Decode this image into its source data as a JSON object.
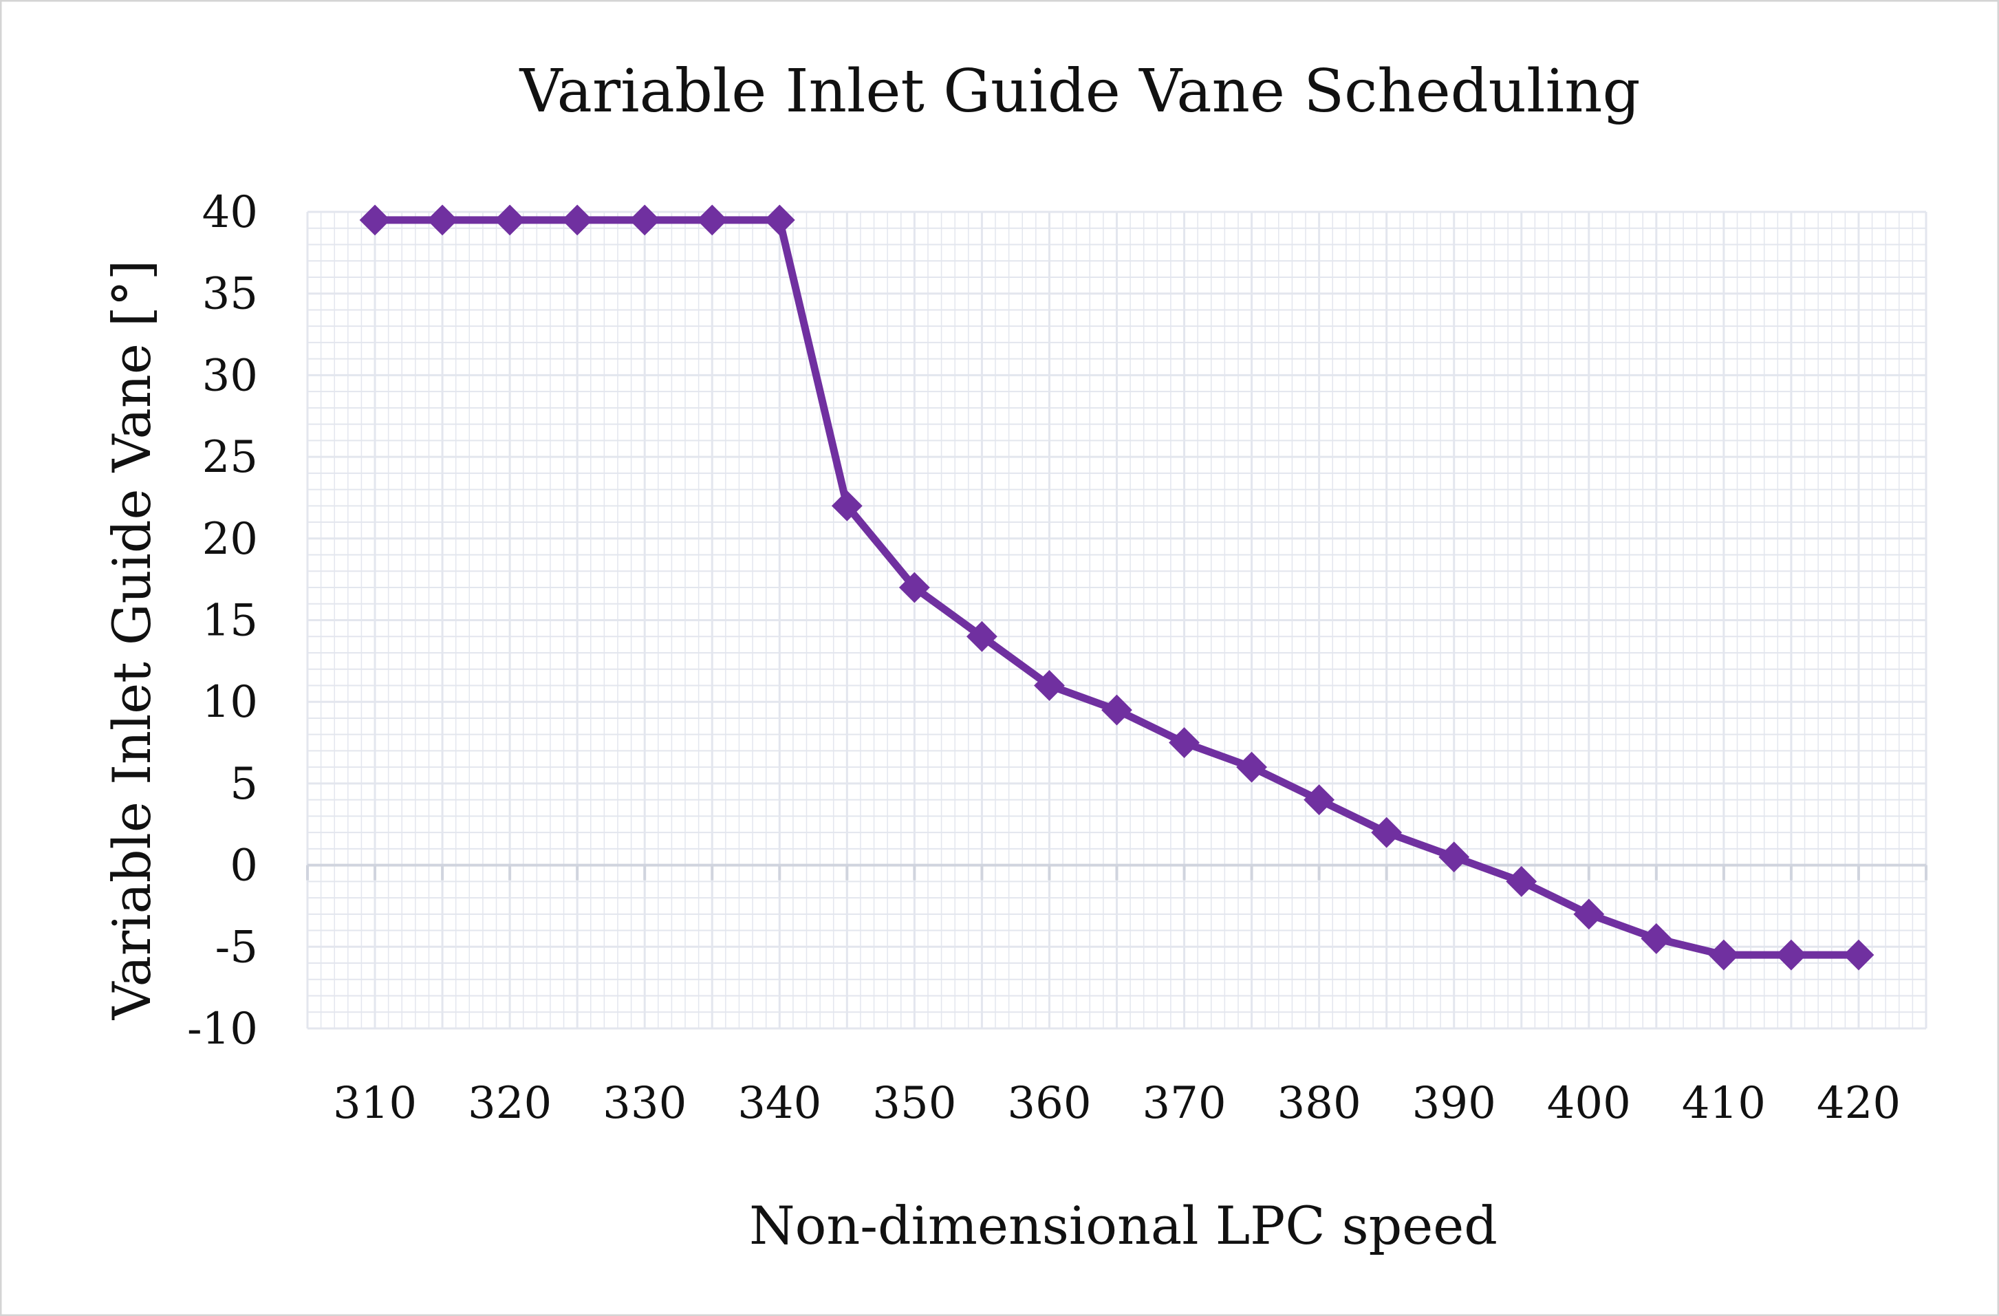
{
  "chart_data": {
    "type": "line",
    "title": "Variable Inlet Guide Vane Scheduling",
    "xlabel": "Non-dimensional LPC speed",
    "ylabel": "Variable Inlet Guide Vane [°]",
    "xlim": [
      305,
      425
    ],
    "ylim": [
      -10,
      40
    ],
    "x_ticks": [
      310,
      320,
      330,
      340,
      350,
      360,
      370,
      380,
      390,
      400,
      410,
      420
    ],
    "y_ticks": [
      40,
      35,
      30,
      25,
      20,
      15,
      10,
      5,
      0,
      -5,
      -10
    ],
    "grid": true,
    "legend": "none",
    "line_color": "#7030A0",
    "gridline_color": "#e3e6ee",
    "series": [
      {
        "x": [
          310,
          315,
          320,
          325,
          330,
          335,
          340,
          345,
          350,
          355,
          360,
          365,
          370,
          375,
          380,
          385,
          390,
          395,
          400,
          405,
          410,
          415,
          420
        ],
        "values": [
          39.5,
          39.5,
          39.5,
          39.5,
          39.5,
          39.5,
          39.5,
          22,
          17,
          14,
          11,
          9.5,
          7.5,
          6,
          4,
          2,
          0.5,
          -1,
          -3,
          -4.5,
          -5.5,
          -5.5,
          -5.5
        ]
      }
    ]
  }
}
